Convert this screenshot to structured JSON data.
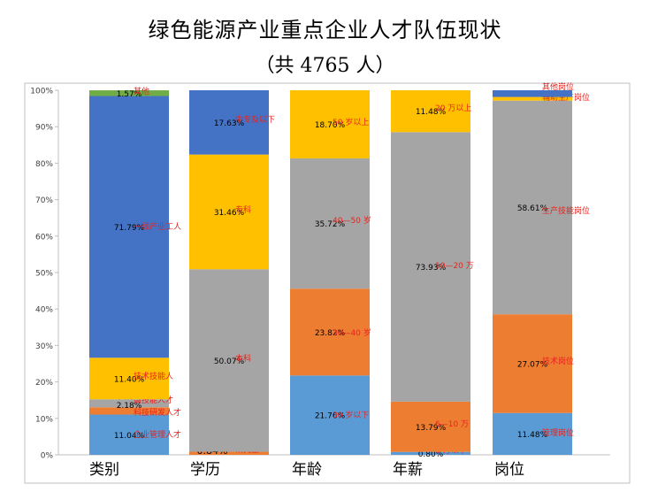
{
  "title": "绿色能源产业重点企业人才队伍现状",
  "subtitle": "（共 4765 人）",
  "colors": {
    "blue": "#5B9BD5",
    "orange": "#ED7D31",
    "gray": "#A5A5A5",
    "yellow": "#FFC000",
    "darkblue": "#4472C4",
    "green": "#70AD47",
    "label": "#E8231E"
  },
  "chart_data": {
    "type": "bar",
    "stacked": true,
    "percent": true,
    "categories": [
      "类别",
      "学历",
      "年龄",
      "年薪",
      "岗位"
    ],
    "y_ticks": [
      "0%",
      "10%",
      "20%",
      "30%",
      "40%",
      "50%",
      "60%",
      "70%",
      "80%",
      "90%",
      "100%"
    ],
    "ylim": [
      0,
      100
    ],
    "grid": false,
    "legend": "none",
    "bars": [
      {
        "category": "类别",
        "segments": [
          {
            "label": "企业管理人才",
            "value": 11.04,
            "text": "11.04%",
            "color": "blue"
          },
          {
            "label": "科技研发人才",
            "value": 2.01,
            "text": "2.01%",
            "color": "orange"
          },
          {
            "label": "高技能人才",
            "value": 2.18,
            "text": "2.18%",
            "color": "gray"
          },
          {
            "label": "技术技能人",
            "value": 11.4,
            "text": "11.40%",
            "color": "yellow"
          },
          {
            "label": "一线产业工人",
            "value": 71.79,
            "text": "71.79%",
            "color": "darkblue"
          },
          {
            "label": "其他",
            "value": 1.57,
            "text": "1.57%",
            "color": "green"
          }
        ]
      },
      {
        "category": "学历",
        "segments": [
          {
            "label": "研究生",
            "value": 0.84,
            "text": "0.84%",
            "color": "orange"
          },
          {
            "label": "本科",
            "value": 50.07,
            "text": "50.07%",
            "color": "gray"
          },
          {
            "label": "专科",
            "value": 31.46,
            "text": "31.46%",
            "color": "yellow"
          },
          {
            "label": "中专及以下",
            "value": 17.63,
            "text": "17.63%",
            "color": "darkblue"
          }
        ]
      },
      {
        "category": "年龄",
        "segments": [
          {
            "label": "30 岁以下",
            "value": 21.76,
            "text": "21.76%",
            "color": "blue"
          },
          {
            "label": "30—40 岁",
            "value": 23.82,
            "text": "23.82%",
            "color": "orange"
          },
          {
            "label": "40—50 岁",
            "value": 35.72,
            "text": "35.72%",
            "color": "gray"
          },
          {
            "label": "50 岁以上",
            "value": 18.7,
            "text": "18.70%",
            "color": "yellow"
          }
        ]
      },
      {
        "category": "年薪",
        "segments": [
          {
            "label": "6 万以下",
            "value": 0.8,
            "text": "0.80%",
            "color": "blue"
          },
          {
            "label": "6—10 万",
            "value": 13.79,
            "text": "13.79%",
            "color": "orange"
          },
          {
            "label": "10—20 万",
            "value": 73.93,
            "text": "73.93%",
            "color": "gray"
          },
          {
            "label": "20 万以上",
            "value": 11.48,
            "text": "11.48%",
            "color": "yellow"
          }
        ]
      },
      {
        "category": "岗位",
        "segments": [
          {
            "label": "管理岗位",
            "value": 11.48,
            "text": "11.48%",
            "color": "blue"
          },
          {
            "label": "技术岗位",
            "value": 27.07,
            "text": "27.07%",
            "color": "orange"
          },
          {
            "label": "生产技能岗位",
            "value": 58.61,
            "text": "58.61%",
            "color": "gray"
          },
          {
            "label": "辅助生产岗位",
            "value": 1.0,
            "text": "",
            "color": "yellow"
          },
          {
            "label": "其他岗位",
            "value": 1.84,
            "text": "",
            "color": "darkblue"
          }
        ]
      }
    ]
  }
}
